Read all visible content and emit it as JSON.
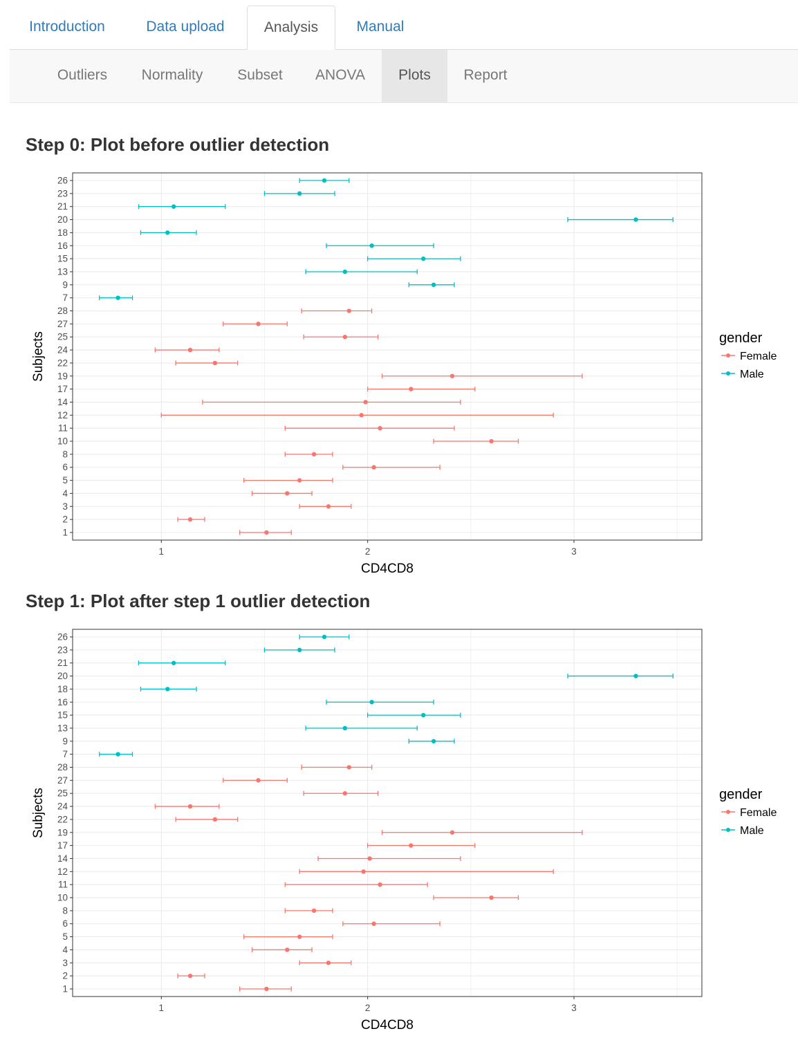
{
  "tabs": [
    {
      "label": "Introduction"
    },
    {
      "label": "Data upload"
    },
    {
      "label": "Analysis",
      "active": true
    },
    {
      "label": "Manual"
    }
  ],
  "subtabs": [
    {
      "label": "Outliers"
    },
    {
      "label": "Normality"
    },
    {
      "label": "Subset"
    },
    {
      "label": "ANOVA"
    },
    {
      "label": "Plots",
      "active": true
    },
    {
      "label": "Report"
    }
  ],
  "sections": [
    {
      "title": "Step 0: Plot before outlier detection"
    },
    {
      "title": "Step 1: Plot after step 1 outlier detection"
    }
  ],
  "colors": {
    "Female": "#F8766D",
    "Male": "#00BFC4"
  },
  "chart_data": [
    {
      "type": "errorbar",
      "xlabel": "CD4CD8",
      "ylabel": "Subjects",
      "xlim": [
        0.57,
        3.62
      ],
      "xticks": [
        1,
        2,
        3
      ],
      "grid": true,
      "legend": {
        "title": "gender",
        "entries": [
          "Female",
          "Male"
        ],
        "placement": "right"
      },
      "categories": [
        "1",
        "2",
        "3",
        "4",
        "5",
        "6",
        "8",
        "10",
        "11",
        "12",
        "14",
        "17",
        "19",
        "22",
        "24",
        "25",
        "27",
        "28",
        "7",
        "9",
        "13",
        "15",
        "16",
        "18",
        "20",
        "21",
        "23",
        "26"
      ],
      "points": [
        {
          "subject": "1",
          "gender": "Female",
          "low": 1.38,
          "mean": 1.51,
          "high": 1.63
        },
        {
          "subject": "2",
          "gender": "Female",
          "low": 1.08,
          "mean": 1.14,
          "high": 1.21
        },
        {
          "subject": "3",
          "gender": "Female",
          "low": 1.67,
          "mean": 1.81,
          "high": 1.92
        },
        {
          "subject": "4",
          "gender": "Female",
          "low": 1.44,
          "mean": 1.61,
          "high": 1.73
        },
        {
          "subject": "5",
          "gender": "Female",
          "low": 1.4,
          "mean": 1.67,
          "high": 1.83
        },
        {
          "subject": "6",
          "gender": "Female",
          "low": 1.88,
          "mean": 2.03,
          "high": 2.35
        },
        {
          "subject": "8",
          "gender": "Female",
          "low": 1.6,
          "mean": 1.74,
          "high": 1.83
        },
        {
          "subject": "10",
          "gender": "Female",
          "low": 2.32,
          "mean": 2.6,
          "high": 2.73
        },
        {
          "subject": "11",
          "gender": "Female",
          "low": 1.6,
          "mean": 2.06,
          "high": 2.42
        },
        {
          "subject": "12",
          "gender": "Female",
          "low": 1.0,
          "mean": 1.97,
          "high": 2.9
        },
        {
          "subject": "14",
          "gender": "Female",
          "low": 1.2,
          "mean": 1.99,
          "high": 2.45
        },
        {
          "subject": "17",
          "gender": "Female",
          "low": 2.0,
          "mean": 2.21,
          "high": 2.52
        },
        {
          "subject": "19",
          "gender": "Female",
          "low": 2.07,
          "mean": 2.41,
          "high": 3.04
        },
        {
          "subject": "22",
          "gender": "Female",
          "low": 1.07,
          "mean": 1.26,
          "high": 1.37
        },
        {
          "subject": "24",
          "gender": "Female",
          "low": 0.97,
          "mean": 1.14,
          "high": 1.28
        },
        {
          "subject": "25",
          "gender": "Female",
          "low": 1.69,
          "mean": 1.89,
          "high": 2.05
        },
        {
          "subject": "27",
          "gender": "Female",
          "low": 1.3,
          "mean": 1.47,
          "high": 1.61
        },
        {
          "subject": "28",
          "gender": "Female",
          "low": 1.68,
          "mean": 1.91,
          "high": 2.02
        },
        {
          "subject": "7",
          "gender": "Male",
          "low": 0.7,
          "mean": 0.79,
          "high": 0.86
        },
        {
          "subject": "9",
          "gender": "Male",
          "low": 2.2,
          "mean": 2.32,
          "high": 2.42
        },
        {
          "subject": "13",
          "gender": "Male",
          "low": 1.7,
          "mean": 1.89,
          "high": 2.24
        },
        {
          "subject": "15",
          "gender": "Male",
          "low": 2.0,
          "mean": 2.27,
          "high": 2.45
        },
        {
          "subject": "16",
          "gender": "Male",
          "low": 1.8,
          "mean": 2.02,
          "high": 2.32
        },
        {
          "subject": "18",
          "gender": "Male",
          "low": 0.9,
          "mean": 1.03,
          "high": 1.17
        },
        {
          "subject": "20",
          "gender": "Male",
          "low": 2.97,
          "mean": 3.3,
          "high": 3.48
        },
        {
          "subject": "21",
          "gender": "Male",
          "low": 0.89,
          "mean": 1.06,
          "high": 1.31
        },
        {
          "subject": "23",
          "gender": "Male",
          "low": 1.5,
          "mean": 1.67,
          "high": 1.84
        },
        {
          "subject": "26",
          "gender": "Male",
          "low": 1.67,
          "mean": 1.79,
          "high": 1.91
        }
      ]
    },
    {
      "type": "errorbar",
      "xlabel": "CD4CD8",
      "ylabel": "Subjects",
      "xlim": [
        0.57,
        3.62
      ],
      "xticks": [
        1,
        2,
        3
      ],
      "grid": true,
      "legend": {
        "title": "gender",
        "entries": [
          "Female",
          "Male"
        ],
        "placement": "right"
      },
      "categories": [
        "1",
        "2",
        "3",
        "4",
        "5",
        "6",
        "8",
        "10",
        "11",
        "12",
        "14",
        "17",
        "19",
        "22",
        "24",
        "25",
        "27",
        "28",
        "7",
        "9",
        "13",
        "15",
        "16",
        "18",
        "20",
        "21",
        "23",
        "26"
      ],
      "points": [
        {
          "subject": "1",
          "gender": "Female",
          "low": 1.38,
          "mean": 1.51,
          "high": 1.63
        },
        {
          "subject": "2",
          "gender": "Female",
          "low": 1.08,
          "mean": 1.14,
          "high": 1.21
        },
        {
          "subject": "3",
          "gender": "Female",
          "low": 1.67,
          "mean": 1.81,
          "high": 1.92
        },
        {
          "subject": "4",
          "gender": "Female",
          "low": 1.44,
          "mean": 1.61,
          "high": 1.73
        },
        {
          "subject": "5",
          "gender": "Female",
          "low": 1.4,
          "mean": 1.67,
          "high": 1.83
        },
        {
          "subject": "6",
          "gender": "Female",
          "low": 1.88,
          "mean": 2.03,
          "high": 2.35
        },
        {
          "subject": "8",
          "gender": "Female",
          "low": 1.6,
          "mean": 1.74,
          "high": 1.83
        },
        {
          "subject": "10",
          "gender": "Female",
          "low": 2.32,
          "mean": 2.6,
          "high": 2.73
        },
        {
          "subject": "11",
          "gender": "Female",
          "low": 1.6,
          "mean": 2.06,
          "high": 2.29
        },
        {
          "subject": "12",
          "gender": "Female",
          "low": 1.67,
          "mean": 1.98,
          "high": 2.9
        },
        {
          "subject": "14",
          "gender": "Female",
          "low": 1.76,
          "mean": 2.01,
          "high": 2.45
        },
        {
          "subject": "17",
          "gender": "Female",
          "low": 2.0,
          "mean": 2.21,
          "high": 2.52
        },
        {
          "subject": "19",
          "gender": "Female",
          "low": 2.07,
          "mean": 2.41,
          "high": 3.04
        },
        {
          "subject": "22",
          "gender": "Female",
          "low": 1.07,
          "mean": 1.26,
          "high": 1.37
        },
        {
          "subject": "24",
          "gender": "Female",
          "low": 0.97,
          "mean": 1.14,
          "high": 1.28
        },
        {
          "subject": "25",
          "gender": "Female",
          "low": 1.69,
          "mean": 1.89,
          "high": 2.05
        },
        {
          "subject": "27",
          "gender": "Female",
          "low": 1.3,
          "mean": 1.47,
          "high": 1.61
        },
        {
          "subject": "28",
          "gender": "Female",
          "low": 1.68,
          "mean": 1.91,
          "high": 2.02
        },
        {
          "subject": "7",
          "gender": "Male",
          "low": 0.7,
          "mean": 0.79,
          "high": 0.86
        },
        {
          "subject": "9",
          "gender": "Male",
          "low": 2.2,
          "mean": 2.32,
          "high": 2.42
        },
        {
          "subject": "13",
          "gender": "Male",
          "low": 1.7,
          "mean": 1.89,
          "high": 2.24
        },
        {
          "subject": "15",
          "gender": "Male",
          "low": 2.0,
          "mean": 2.27,
          "high": 2.45
        },
        {
          "subject": "16",
          "gender": "Male",
          "low": 1.8,
          "mean": 2.02,
          "high": 2.32
        },
        {
          "subject": "18",
          "gender": "Male",
          "low": 0.9,
          "mean": 1.03,
          "high": 1.17
        },
        {
          "subject": "20",
          "gender": "Male",
          "low": 2.97,
          "mean": 3.3,
          "high": 3.48
        },
        {
          "subject": "21",
          "gender": "Male",
          "low": 0.89,
          "mean": 1.06,
          "high": 1.31
        },
        {
          "subject": "23",
          "gender": "Male",
          "low": 1.5,
          "mean": 1.67,
          "high": 1.84
        },
        {
          "subject": "26",
          "gender": "Male",
          "low": 1.67,
          "mean": 1.79,
          "high": 1.91
        }
      ]
    }
  ]
}
